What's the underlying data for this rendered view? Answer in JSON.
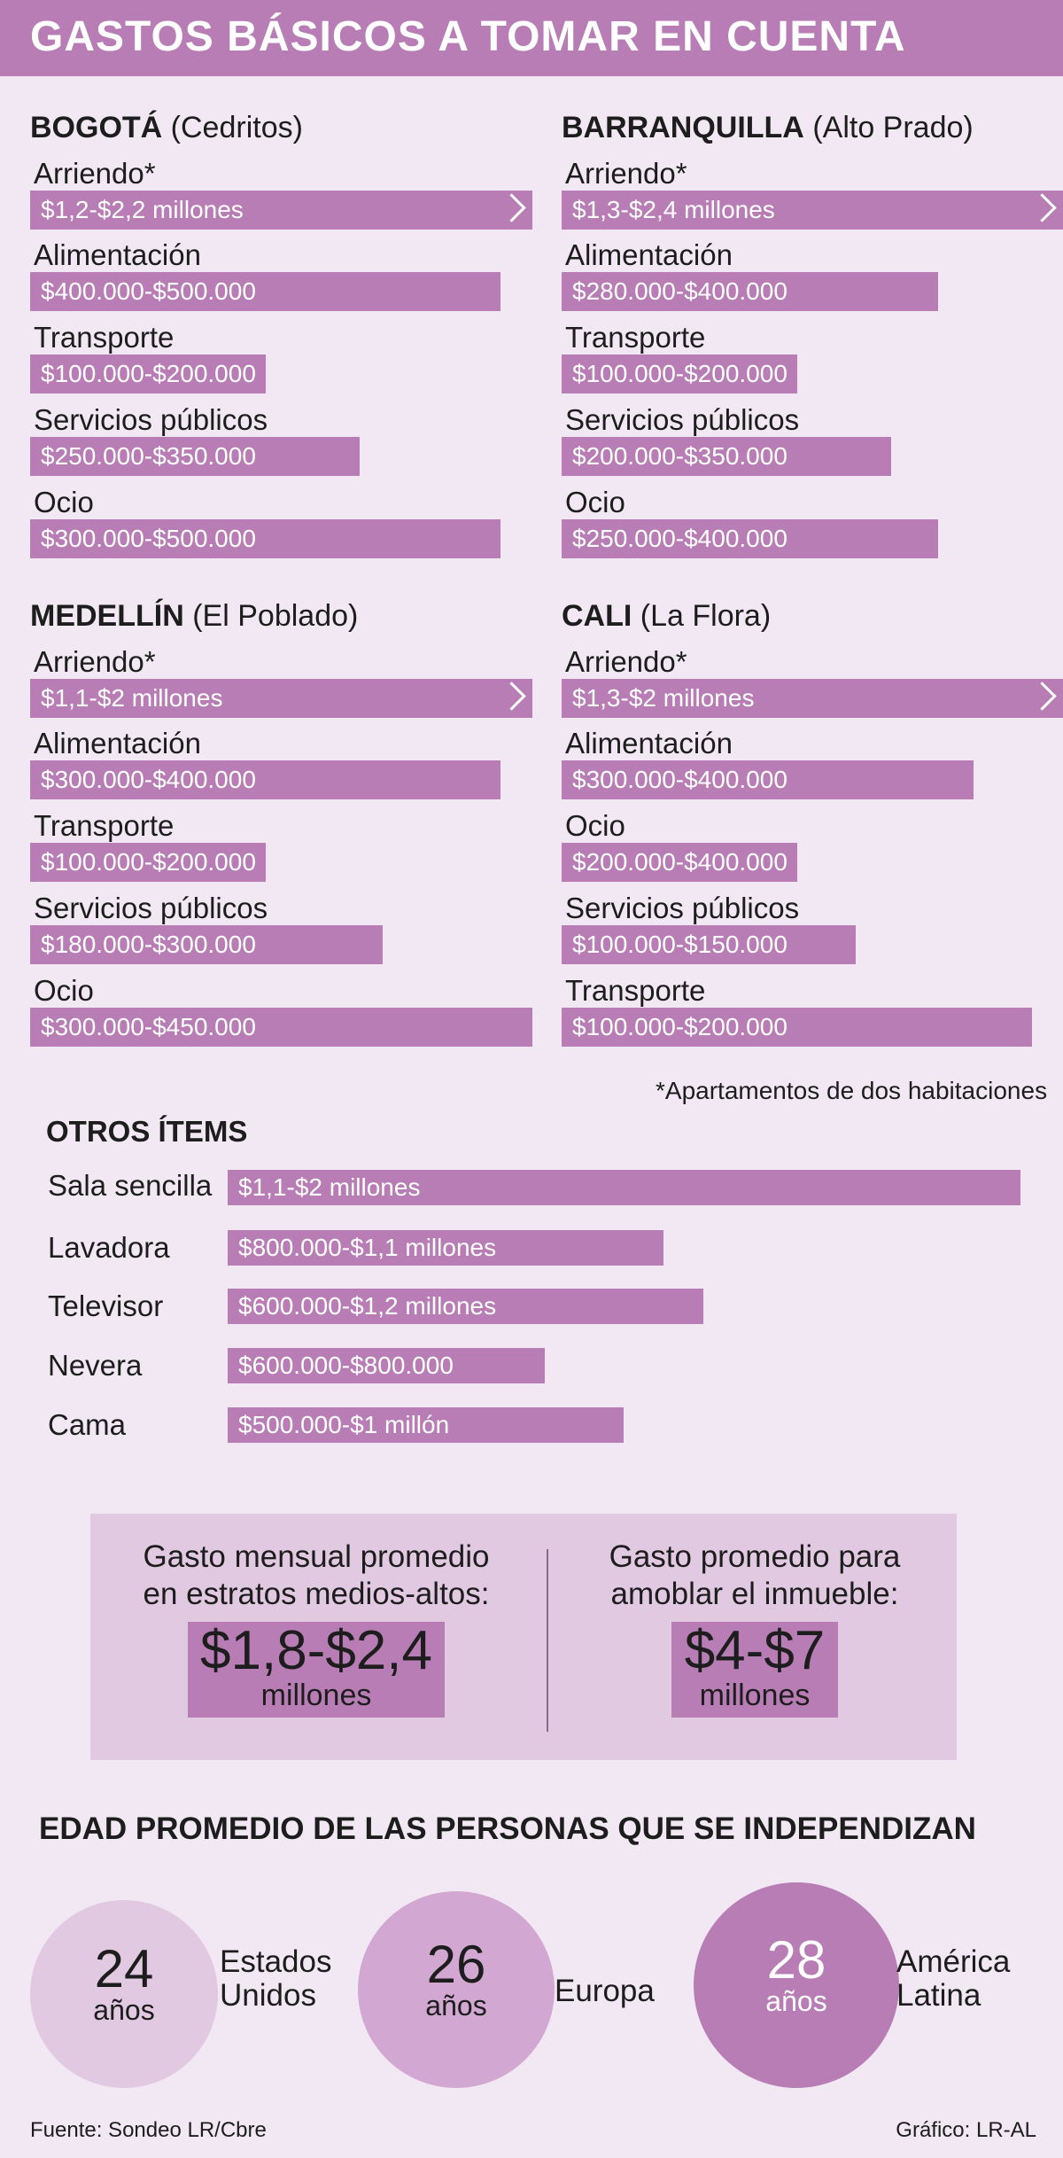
{
  "title": "GASTOS BÁSICOS A TOMAR EN CUENTA",
  "cities": [
    {
      "name": "BOGOTÁ",
      "area": "(Cedritos)",
      "items": [
        {
          "label": "Arriendo*",
          "value": "$1,2-$2,2 millones"
        },
        {
          "label": "Alimentación",
          "value": "$400.000-$500.000"
        },
        {
          "label": "Transporte",
          "value": "$100.000-$200.000"
        },
        {
          "label": "Servicios públicos",
          "value": "$250.000-$350.000"
        },
        {
          "label": "Ocio",
          "value": "$300.000-$500.000"
        }
      ]
    },
    {
      "name": "BARRANQUILLA",
      "area": "(Alto Prado)",
      "items": [
        {
          "label": "Arriendo*",
          "value": "$1,3-$2,4 millones"
        },
        {
          "label": "Alimentación",
          "value": "$280.000-$400.000"
        },
        {
          "label": "Transporte",
          "value": "$100.000-$200.000"
        },
        {
          "label": "Servicios públicos",
          "value": "$200.000-$350.000"
        },
        {
          "label": "Ocio",
          "value": "$250.000-$400.000"
        }
      ]
    },
    {
      "name": "MEDELLÍN",
      "area": "(El Poblado)",
      "items": [
        {
          "label": "Arriendo*",
          "value": "$1,1-$2 millones"
        },
        {
          "label": "Alimentación",
          "value": "$300.000-$400.000"
        },
        {
          "label": "Transporte",
          "value": "$100.000-$200.000"
        },
        {
          "label": "Servicios públicos",
          "value": "$180.000-$300.000"
        },
        {
          "label": "Ocio",
          "value": "$300.000-$450.000"
        }
      ]
    },
    {
      "name": "CALI",
      "area": "(La Flora)",
      "items": [
        {
          "label": "Arriendo*",
          "value": "$1,3-$2 millones"
        },
        {
          "label": "Alimentación",
          "value": "$300.000-$400.000"
        },
        {
          "label": "Ocio",
          "value": "$200.000-$400.000"
        },
        {
          "label": "Servicios públicos",
          "value": "$100.000-$150.000"
        },
        {
          "label": "Transporte",
          "value": "$100.000-$200.000"
        }
      ]
    }
  ],
  "footnote": "*Apartamentos de dos habitaciones",
  "others": {
    "title": "OTROS ÍTEMS",
    "items": [
      {
        "label": "Sala sencilla",
        "value": "$1,1-$2 millones"
      },
      {
        "label": "Lavadora",
        "value": "$800.000-$1,1 millones"
      },
      {
        "label": "Televisor",
        "value": "$600.000-$1,2 millones"
      },
      {
        "label": "Nevera",
        "value": "$600.000-$800.000"
      },
      {
        "label": "Cama",
        "value": "$500.000-$1 millón"
      }
    ]
  },
  "summary": {
    "left": {
      "line1": "Gasto mensual promedio",
      "line2": "en estratos medios-altos:",
      "big": "$1,8-$2,4",
      "small": "millones"
    },
    "right": {
      "line1": "Gasto promedio para",
      "line2": "amoblar el inmueble:",
      "big": "$4-$7",
      "small": "millones"
    }
  },
  "ages": {
    "title": "EDAD PROMEDIO DE LAS PERSONAS QUE SE INDEPENDIZAN",
    "items": [
      {
        "num": "24",
        "unit": "años",
        "region1": "Estados",
        "region2": "Unidos"
      },
      {
        "num": "26",
        "unit": "años",
        "region1": "Europa",
        "region2": ""
      },
      {
        "num": "28",
        "unit": "años",
        "region1": "América",
        "region2": "Latina"
      }
    ]
  },
  "colors": {
    "accent": "#b87db5",
    "background": "#f1e8f3",
    "panel": "#e2c9e2"
  },
  "source": "Fuente: Sondeo LR/Cbre",
  "credit": "Gráfico: LR-AL"
}
